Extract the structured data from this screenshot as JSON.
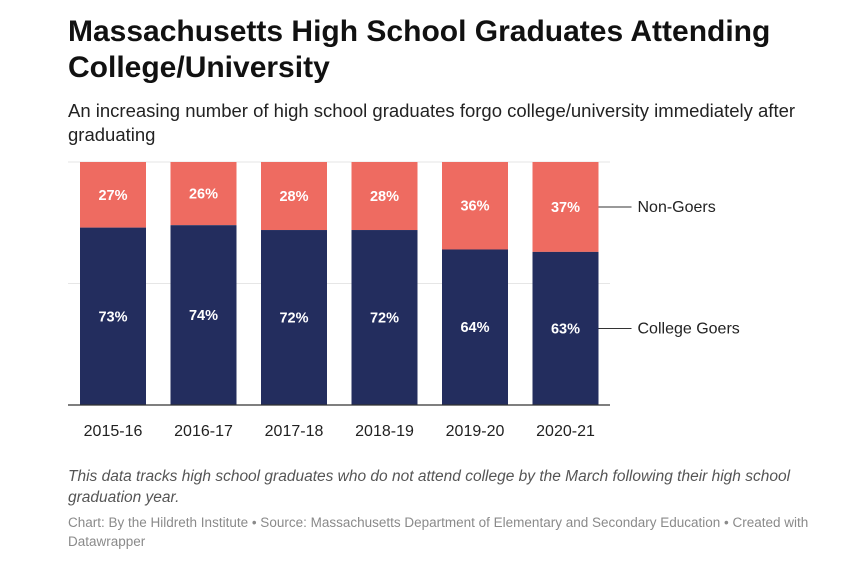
{
  "title": "Massachusetts High School Graduates Attending College/University",
  "subtitle": "An increasing number of high school graduates forgo college/university immediately after graduating",
  "note": "This data tracks high school graduates who do not attend college by the March following their high school graduation year.",
  "credit": "Chart: By the Hildreth Institute • Source: Massachusetts Department of Elementary and Secondary Education • Created with Datawrapper",
  "chart_data": {
    "type": "bar",
    "stacked": true,
    "categories": [
      "2015-16",
      "2016-17",
      "2017-18",
      "2018-19",
      "2019-20",
      "2020-21"
    ],
    "series": [
      {
        "name": "College Goers",
        "values": [
          73,
          74,
          72,
          72,
          64,
          63
        ],
        "labels": [
          "73%",
          "74%",
          "72%",
          "72%",
          "64%",
          "63%"
        ],
        "color": "#232d5e"
      },
      {
        "name": "Non-Goers",
        "values": [
          27,
          26,
          28,
          28,
          36,
          37
        ],
        "labels": [
          "27%",
          "26%",
          "28%",
          "28%",
          "36%",
          "37%"
        ],
        "color": "#ee6b61"
      }
    ],
    "ylim": [
      0,
      100
    ],
    "grid": true,
    "legend": "right, direct labels"
  }
}
